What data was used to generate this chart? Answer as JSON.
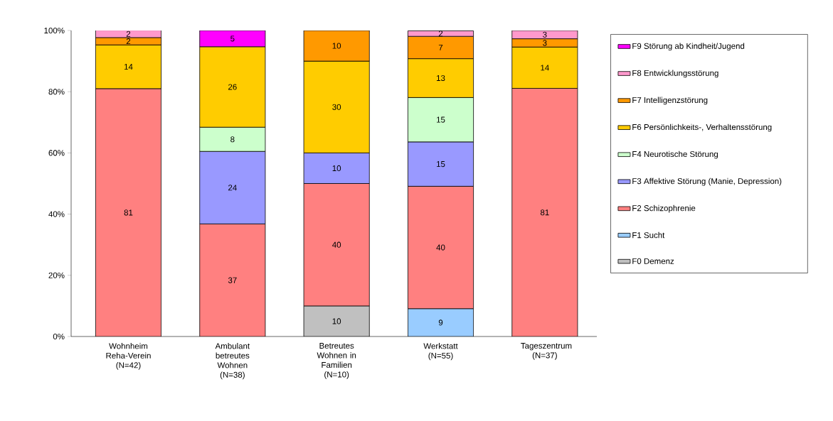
{
  "chart_data": {
    "type": "bar",
    "stacked": true,
    "legend": "right",
    "grid": false,
    "categories": [
      "Wohnheim Reha-Verein (N=42)",
      "Ambulant betreutes Wohnen (N=38)",
      "Betreutes Wohnen in Familien (N=10)",
      "Werkstatt (N=55)",
      "Tageszentrum (N=37)"
    ],
    "ylim": [
      0,
      100
    ],
    "yticks": [
      {
        "value": 0,
        "label": "0%"
      },
      {
        "value": 20,
        "label": "20%"
      },
      {
        "value": 40,
        "label": "40%"
      },
      {
        "value": 60,
        "label": "60%"
      },
      {
        "value": 80,
        "label": "80%"
      },
      {
        "value": 100,
        "label": "100%"
      }
    ],
    "series": [
      {
        "name": "F0 Demenz",
        "color": "#c0c0c0",
        "values": [
          null,
          null,
          10,
          null,
          null
        ],
        "value_labels": [
          null,
          null,
          "10",
          null,
          null
        ]
      },
      {
        "name": "F1 Sucht",
        "color": "#99ccff",
        "values": [
          null,
          null,
          null,
          9.1,
          null
        ],
        "value_labels": [
          null,
          null,
          null,
          "9",
          null
        ]
      },
      {
        "name": "F2 Schizophrenie",
        "color": "#ff8080",
        "values": [
          81.0,
          36.8,
          40,
          40.0,
          81.1
        ],
        "value_labels": [
          "81",
          "37",
          "40",
          "40",
          "81"
        ]
      },
      {
        "name": "F3 Affektive Störung (Manie, Depression)",
        "color": "#9999ff",
        "values": [
          null,
          23.7,
          10,
          14.5,
          null
        ],
        "value_labels": [
          null,
          "24",
          "10",
          "15",
          null
        ]
      },
      {
        "name": "F4 Neurotische Störung",
        "color": "#ccffcc",
        "values": [
          null,
          7.9,
          null,
          14.5,
          null
        ],
        "value_labels": [
          null,
          "8",
          null,
          "15",
          null
        ]
      },
      {
        "name": "F6 Persönlichkeits-, Verhaltensstörung",
        "color": "#ffcc00",
        "values": [
          14.3,
          26.3,
          30,
          12.7,
          13.5
        ],
        "value_labels": [
          "14",
          "26",
          "30",
          "13",
          "14"
        ]
      },
      {
        "name": "F7 Intelligenzstörung",
        "color": "#ff9900",
        "values": [
          2.4,
          null,
          10,
          7.3,
          2.7
        ],
        "value_labels": [
          "2",
          null,
          "10",
          "7",
          "3"
        ]
      },
      {
        "name": "F8 Entwicklungsstörung",
        "color": "#ff99cc",
        "values": [
          2.4,
          null,
          null,
          1.8,
          2.7
        ],
        "value_labels": [
          "2",
          null,
          null,
          "2",
          "3"
        ]
      },
      {
        "name": "F9 Störung ab Kindheit/Jugend",
        "color": "#ff00ff",
        "values": [
          null,
          5.3,
          null,
          null,
          null
        ],
        "value_labels": [
          null,
          "5",
          null,
          null,
          null
        ]
      }
    ]
  }
}
